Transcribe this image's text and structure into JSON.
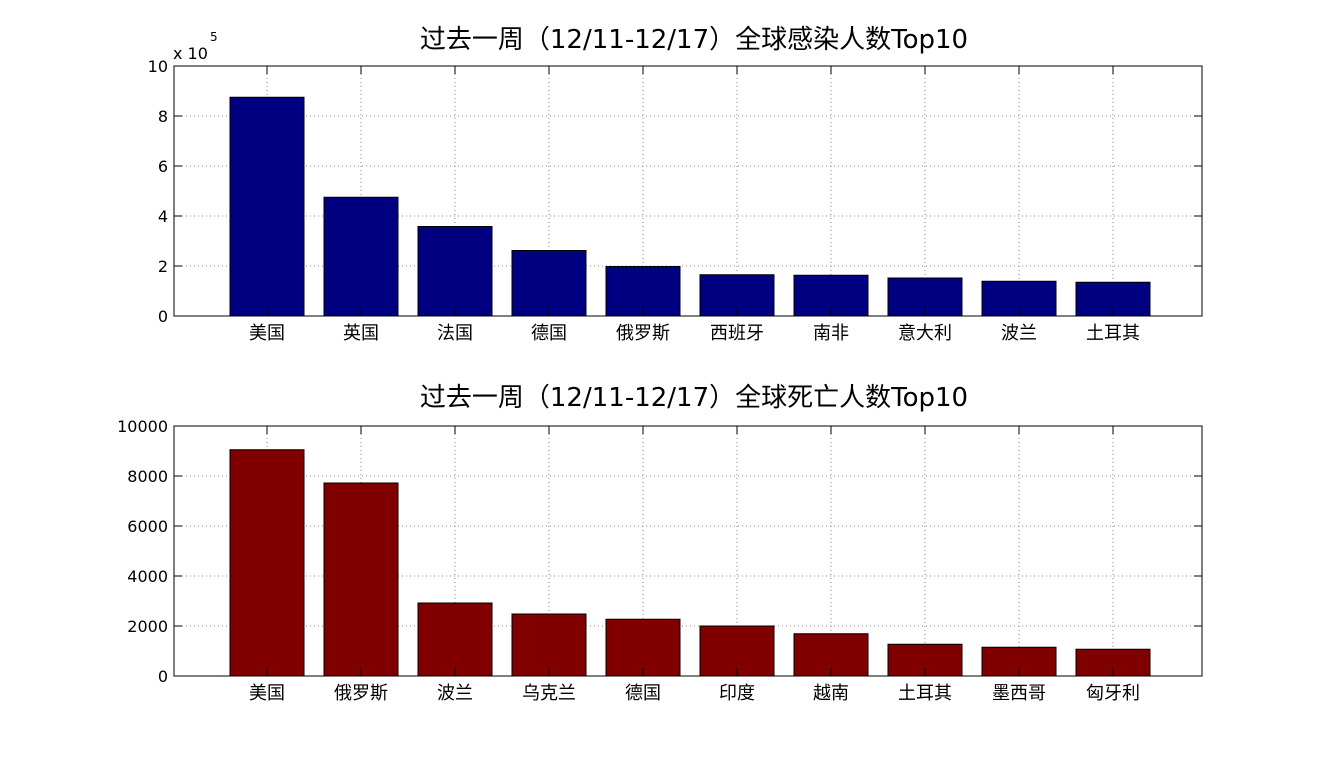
{
  "chart_data": [
    {
      "type": "bar",
      "title": "过去一周（12/11-12/17）全球感染人数Top10",
      "xlabel": "",
      "ylabel": "",
      "multiplier": "x 10",
      "multiplier_exp": "5",
      "ylim": [
        0,
        10
      ],
      "yticks": [
        0,
        2,
        4,
        6,
        8,
        10
      ],
      "grid": true,
      "bar_color": "#000080",
      "categories": [
        "美国",
        "英国",
        "法国",
        "德国",
        "俄罗斯",
        "西班牙",
        "南非",
        "意大利",
        "波兰",
        "土耳其"
      ],
      "values": [
        8.75,
        4.75,
        3.58,
        2.62,
        1.98,
        1.65,
        1.63,
        1.52,
        1.39,
        1.35
      ]
    },
    {
      "type": "bar",
      "title": "过去一周（12/11-12/17）全球死亡人数Top10",
      "xlabel": "",
      "ylabel": "",
      "ylim": [
        0,
        10000
      ],
      "yticks": [
        0,
        2000,
        4000,
        6000,
        8000,
        10000
      ],
      "grid": true,
      "bar_color": "#800000",
      "categories": [
        "美国",
        "俄罗斯",
        "波兰",
        "乌克兰",
        "德国",
        "印度",
        "越南",
        "土耳其",
        "墨西哥",
        "匈牙利"
      ],
      "values": [
        9050,
        7720,
        2920,
        2480,
        2270,
        2000,
        1690,
        1270,
        1150,
        1070
      ]
    }
  ]
}
